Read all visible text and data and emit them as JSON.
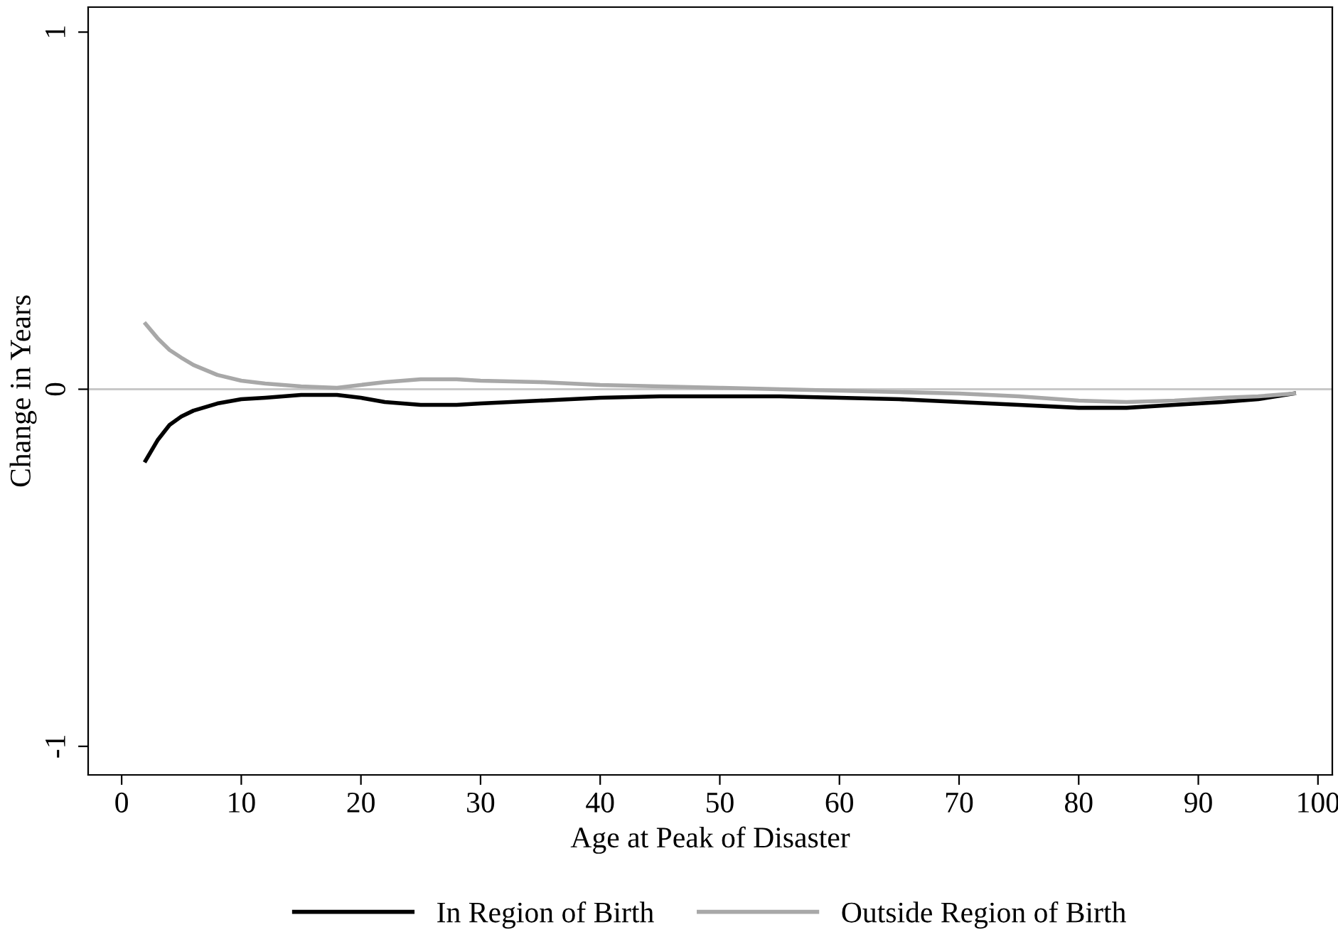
{
  "chart_data": {
    "type": "line",
    "xlabel": "Age at Peak of Disaster",
    "ylabel": "Change in Years",
    "x": [
      2,
      3,
      4,
      5,
      6,
      8,
      10,
      12,
      15,
      18,
      20,
      22,
      25,
      28,
      30,
      35,
      40,
      45,
      50,
      55,
      60,
      65,
      70,
      75,
      80,
      84,
      88,
      92,
      95,
      98
    ],
    "series": [
      {
        "name": "In Region of Birth",
        "color": "#000000",
        "values": [
          -0.2,
          -0.143,
          -0.1,
          -0.076,
          -0.06,
          -0.04,
          -0.028,
          -0.024,
          -0.016,
          -0.016,
          -0.024,
          -0.036,
          -0.044,
          -0.044,
          -0.04,
          -0.032,
          -0.024,
          -0.02,
          -0.02,
          -0.02,
          -0.024,
          -0.028,
          -0.036,
          -0.044,
          -0.052,
          -0.052,
          -0.044,
          -0.036,
          -0.028,
          -0.012
        ]
      },
      {
        "name": "Outside Region of Birth",
        "color": "#a8a8a8",
        "values": [
          0.183,
          0.143,
          0.11,
          0.088,
          0.068,
          0.04,
          0.024,
          0.016,
          0.008,
          0.004,
          0.012,
          0.02,
          0.028,
          0.028,
          0.024,
          0.02,
          0.012,
          0.008,
          0.004,
          0,
          -0.004,
          -0.008,
          -0.012,
          -0.02,
          -0.032,
          -0.036,
          -0.032,
          -0.024,
          -0.02,
          -0.012
        ]
      }
    ],
    "xlim": [
      -2.8,
      101.2
    ],
    "ylim": [
      -1.08,
      1.07
    ],
    "xticks": [
      0,
      10,
      20,
      30,
      40,
      50,
      60,
      70,
      80,
      90,
      100
    ],
    "yticks": [
      -1,
      0,
      1
    ],
    "ref_lines": [
      {
        "axis": "y",
        "value": 0,
        "color": "#c8c8c8"
      }
    ],
    "grid": false,
    "legend": "bottom",
    "marker": "none",
    "line_style": "solid"
  }
}
